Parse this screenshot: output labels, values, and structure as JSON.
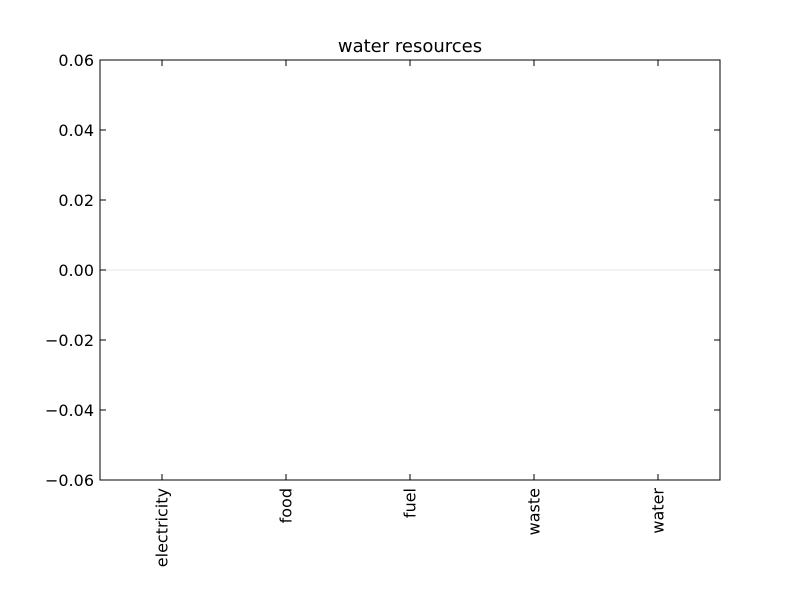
{
  "chart_data": {
    "type": "bar",
    "title": "water resources",
    "xlabel": "",
    "ylabel": "",
    "categories": [
      "electricity",
      "food",
      "fuel",
      "waste",
      "water"
    ],
    "values": [
      0,
      0,
      0,
      0,
      0
    ],
    "ylim": [
      -0.06,
      0.06
    ],
    "yticks": [
      0.06,
      0.04,
      0.02,
      0.0,
      -0.02,
      -0.04,
      -0.06
    ],
    "ytick_labels": [
      "0.06",
      "0.04",
      "0.02",
      "0.00",
      "−0.02",
      "−0.04",
      "−0.06"
    ],
    "xtick_rotation": "vertical",
    "grid": false,
    "legend": "none",
    "colors": {
      "axes": "#000000",
      "zero_line": "#e6e6e6",
      "background": "#ffffff",
      "bar": "#1f77b4"
    }
  }
}
